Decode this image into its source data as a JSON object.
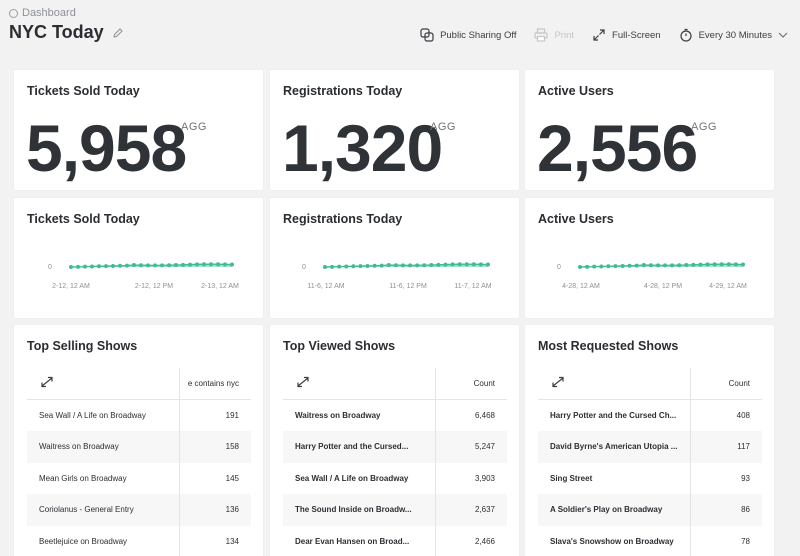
{
  "header": {
    "breadcrumb": "Dashboard",
    "title": "NYC Today",
    "actions": {
      "sharing": "Public Sharing Off",
      "print": "Print",
      "fullscreen": "Full-Screen",
      "refresh": "Every 30 Minutes"
    }
  },
  "kpis": [
    {
      "title": "Tickets Sold Today",
      "value": "5,958",
      "badge": "AGG"
    },
    {
      "title": "Registrations Today",
      "value": "1,320",
      "badge": "AGG"
    },
    {
      "title": "Active Users",
      "value": "2,556",
      "badge": "AGG"
    }
  ],
  "sparklines": [
    {
      "title": "Tickets Sold Today",
      "ylabel": "0",
      "ticks": [
        "2-12, 12 AM",
        "2-12, 12 PM",
        "2-13, 12 AM"
      ]
    },
    {
      "title": "Registrations Today",
      "ylabel": "0",
      "ticks": [
        "11-6, 12 AM",
        "11-6, 12 PM",
        "11-7, 12 AM"
      ]
    },
    {
      "title": "Active Users",
      "ylabel": "0",
      "ticks": [
        "4-28, 12 AM",
        "4-28, 12 PM",
        "4-29, 12 AM"
      ]
    }
  ],
  "tables": [
    {
      "title": "Top Selling Shows",
      "count_header": "e contains nyc",
      "rows": [
        {
          "name": "Sea Wall / A Life on Broadway",
          "count": "191"
        },
        {
          "name": "Waitress on Broadway",
          "count": "158"
        },
        {
          "name": "Mean Girls on Broadway",
          "count": "145"
        },
        {
          "name": "Coriolanus - General Entry",
          "count": "136"
        },
        {
          "name": "Beetlejuice on Broadway",
          "count": "134"
        }
      ]
    },
    {
      "title": "Top Viewed Shows",
      "count_header": "Count",
      "rows": [
        {
          "name": "Waitress on Broadway",
          "count": "6,468"
        },
        {
          "name": "Harry Potter and the Cursed...",
          "count": "5,247"
        },
        {
          "name": "Sea Wall / A Life on Broadway",
          "count": "3,903"
        },
        {
          "name": "The Sound Inside on Broadw...",
          "count": "2,637"
        },
        {
          "name": "Dear Evan Hansen on Broad...",
          "count": "2,466"
        }
      ]
    },
    {
      "title": "Most Requested Shows",
      "count_header": "Count",
      "rows": [
        {
          "name": "Harry Potter and the Cursed Ch...",
          "count": "408"
        },
        {
          "name": "David Byrne's American Utopia ...",
          "count": "117"
        },
        {
          "name": "Sing Street",
          "count": "93"
        },
        {
          "name": "A Soldier's Play on Broadway",
          "count": "86"
        },
        {
          "name": "Slava's Snowshow on Broadway",
          "count": "78"
        }
      ]
    }
  ],
  "colors": {
    "accent": "#3ebd93",
    "accent_fill": "#a6e0cb"
  }
}
